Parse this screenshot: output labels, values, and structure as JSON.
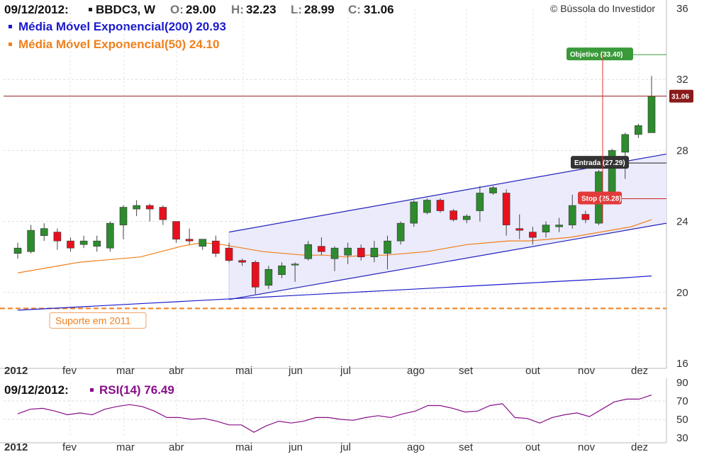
{
  "header": {
    "date": "09/12/2012:",
    "ticker": "BBDC3, W",
    "o_label": "O:",
    "o_value": "29.00",
    "h_label": "H:",
    "h_value": "32.23",
    "l_label": "L:",
    "l_value": "28.99",
    "c_label": "C:",
    "c_value": "31.06",
    "ema200_label": "Média Móvel Exponencial(200) 20.93",
    "ema50_label": "Média Móvel Exponencial(50) 24.10",
    "copyright": "© Bússola do Investidor"
  },
  "colors": {
    "up": "#2e8b2e",
    "down": "#e8101e",
    "ema200": "#1a1acc",
    "ema50": "#f07f1a",
    "rsi": "#880e88",
    "support": "#f07f1a",
    "price_line": "#8b1a1a",
    "objective": "#3a9a3a",
    "stop": "#e23a3a",
    "entry": "#333333",
    "channel": "#2222bb"
  },
  "chart_data": [
    {
      "type": "candlestick",
      "title": "",
      "ylim": [
        16,
        36
      ],
      "yticks": [
        "16",
        "20",
        "24",
        "28",
        "32",
        "36"
      ],
      "x_month_labels": [
        "2012",
        "fev",
        "mar",
        "abr",
        "mai",
        "jun",
        "jul",
        "ago",
        "set",
        "out",
        "nov",
        "dez"
      ],
      "last_price_tag": "31.06",
      "candles": [
        {
          "o": 22.2,
          "h": 22.8,
          "l": 21.9,
          "c": 22.5
        },
        {
          "o": 22.3,
          "h": 23.8,
          "l": 22.2,
          "c": 23.5
        },
        {
          "o": 23.2,
          "h": 23.9,
          "l": 22.9,
          "c": 23.6
        },
        {
          "o": 23.4,
          "h": 23.6,
          "l": 22.4,
          "c": 22.9
        },
        {
          "o": 22.9,
          "h": 23.1,
          "l": 22.3,
          "c": 22.5
        },
        {
          "o": 22.7,
          "h": 23.2,
          "l": 22.5,
          "c": 22.9
        },
        {
          "o": 22.6,
          "h": 23.2,
          "l": 22.3,
          "c": 22.9
        },
        {
          "o": 22.5,
          "h": 24.0,
          "l": 22.3,
          "c": 23.9
        },
        {
          "o": 23.8,
          "h": 24.9,
          "l": 23.0,
          "c": 24.8
        },
        {
          "o": 24.7,
          "h": 25.2,
          "l": 24.3,
          "c": 24.9
        },
        {
          "o": 24.9,
          "h": 25.0,
          "l": 24.0,
          "c": 24.7
        },
        {
          "o": 24.8,
          "h": 24.9,
          "l": 23.8,
          "c": 24.1
        },
        {
          "o": 24.0,
          "h": 24.0,
          "l": 22.8,
          "c": 23.0
        },
        {
          "o": 23.0,
          "h": 23.6,
          "l": 22.7,
          "c": 22.9
        },
        {
          "o": 22.6,
          "h": 23.0,
          "l": 22.4,
          "c": 23.0
        },
        {
          "o": 22.9,
          "h": 23.2,
          "l": 22.0,
          "c": 22.2
        },
        {
          "o": 22.5,
          "h": 22.8,
          "l": 21.7,
          "c": 21.8
        },
        {
          "o": 21.8,
          "h": 21.9,
          "l": 21.5,
          "c": 21.7
        },
        {
          "o": 21.7,
          "h": 21.8,
          "l": 19.9,
          "c": 20.3
        },
        {
          "o": 20.4,
          "h": 21.5,
          "l": 20.2,
          "c": 21.3
        },
        {
          "o": 21.0,
          "h": 21.7,
          "l": 20.8,
          "c": 21.5
        },
        {
          "o": 21.6,
          "h": 21.7,
          "l": 20.6,
          "c": 21.6
        },
        {
          "o": 21.9,
          "h": 22.9,
          "l": 21.8,
          "c": 22.7
        },
        {
          "o": 22.6,
          "h": 23.1,
          "l": 22.1,
          "c": 22.3
        },
        {
          "o": 21.9,
          "h": 22.6,
          "l": 21.2,
          "c": 22.5
        },
        {
          "o": 22.1,
          "h": 22.8,
          "l": 21.6,
          "c": 22.5
        },
        {
          "o": 22.5,
          "h": 22.7,
          "l": 21.8,
          "c": 22.0
        },
        {
          "o": 22.0,
          "h": 22.9,
          "l": 21.7,
          "c": 22.5
        },
        {
          "o": 22.2,
          "h": 23.2,
          "l": 21.3,
          "c": 22.9
        },
        {
          "o": 22.9,
          "h": 24.0,
          "l": 22.7,
          "c": 23.9
        },
        {
          "o": 23.9,
          "h": 25.2,
          "l": 23.7,
          "c": 25.1
        },
        {
          "o": 24.5,
          "h": 25.3,
          "l": 24.4,
          "c": 25.2
        },
        {
          "o": 25.2,
          "h": 25.3,
          "l": 24.5,
          "c": 24.6
        },
        {
          "o": 24.6,
          "h": 24.7,
          "l": 24.0,
          "c": 24.1
        },
        {
          "o": 24.1,
          "h": 24.4,
          "l": 23.9,
          "c": 24.3
        },
        {
          "o": 24.6,
          "h": 26.0,
          "l": 24.0,
          "c": 25.6
        },
        {
          "o": 25.6,
          "h": 26.0,
          "l": 25.5,
          "c": 25.9
        },
        {
          "o": 25.6,
          "h": 25.8,
          "l": 23.2,
          "c": 23.8
        },
        {
          "o": 23.6,
          "h": 24.4,
          "l": 23.0,
          "c": 23.5
        },
        {
          "o": 23.4,
          "h": 23.7,
          "l": 22.7,
          "c": 23.1
        },
        {
          "o": 23.4,
          "h": 24.0,
          "l": 23.1,
          "c": 23.8
        },
        {
          "o": 23.7,
          "h": 24.2,
          "l": 23.4,
          "c": 23.8
        },
        {
          "o": 23.8,
          "h": 25.5,
          "l": 23.6,
          "c": 24.9
        },
        {
          "o": 24.4,
          "h": 24.6,
          "l": 23.9,
          "c": 24.1
        },
        {
          "o": 23.9,
          "h": 26.9,
          "l": 23.8,
          "c": 26.8
        },
        {
          "o": 25.5,
          "h": 28.1,
          "l": 25.3,
          "c": 28.0
        },
        {
          "o": 27.9,
          "h": 29.0,
          "l": 26.4,
          "c": 28.9
        },
        {
          "o": 28.9,
          "h": 29.5,
          "l": 28.7,
          "c": 29.4
        },
        {
          "o": 29.0,
          "h": 32.2,
          "l": 29.0,
          "c": 31.06
        }
      ],
      "ema200": [
        19.0,
        19.1,
        19.2,
        19.3,
        19.4,
        19.5,
        19.6,
        19.7,
        19.8,
        19.9,
        20.0,
        20.1,
        20.2,
        20.3,
        20.4,
        20.5,
        20.6,
        20.7,
        20.8,
        20.93
      ],
      "ema50": [
        21.1,
        21.3,
        21.5,
        21.7,
        21.8,
        21.9,
        22.0,
        22.3,
        22.6,
        22.8,
        22.7,
        22.5,
        22.3,
        22.2,
        22.1,
        22.1,
        22.0,
        22.1,
        22.1,
        22.2,
        22.3,
        22.5,
        22.7,
        22.8,
        22.9,
        22.9,
        23.0,
        23.1,
        23.3,
        23.5,
        23.7,
        24.1
      ],
      "support": {
        "value": 19.1,
        "label": "Suporte em 2011"
      },
      "channel": {
        "upper_start": 23.4,
        "upper_end": 27.8,
        "lower_start": 19.6,
        "lower_end": 23.9
      },
      "levels": [
        {
          "label": "Objetivo (33.40)",
          "value": 33.4
        },
        {
          "label": "Entrada (27.29)",
          "value": 27.29
        },
        {
          "label": "Stop (25.28)",
          "value": 25.28
        }
      ]
    },
    {
      "type": "line",
      "title": "RSI(14) 76.49",
      "date": "09/12/2012:",
      "ylim": [
        30,
        90
      ],
      "yticks": [
        "30",
        "50",
        "70",
        "90"
      ],
      "x_month_labels": [
        "2012",
        "fev",
        "mar",
        "abr",
        "mai",
        "jun",
        "jul",
        "ago",
        "set",
        "out",
        "nov",
        "dez"
      ],
      "values": [
        56,
        61,
        62,
        59,
        55,
        57,
        55,
        61,
        64,
        66,
        64,
        59,
        52,
        52,
        50,
        51,
        48,
        44,
        44,
        36,
        43,
        48,
        46,
        48,
        52,
        52,
        50,
        49,
        52,
        54,
        52,
        56,
        59,
        65,
        65,
        62,
        58,
        59,
        65,
        67,
        52,
        51,
        46,
        52,
        55,
        57,
        53,
        61,
        69,
        72,
        72,
        76.49
      ]
    }
  ]
}
